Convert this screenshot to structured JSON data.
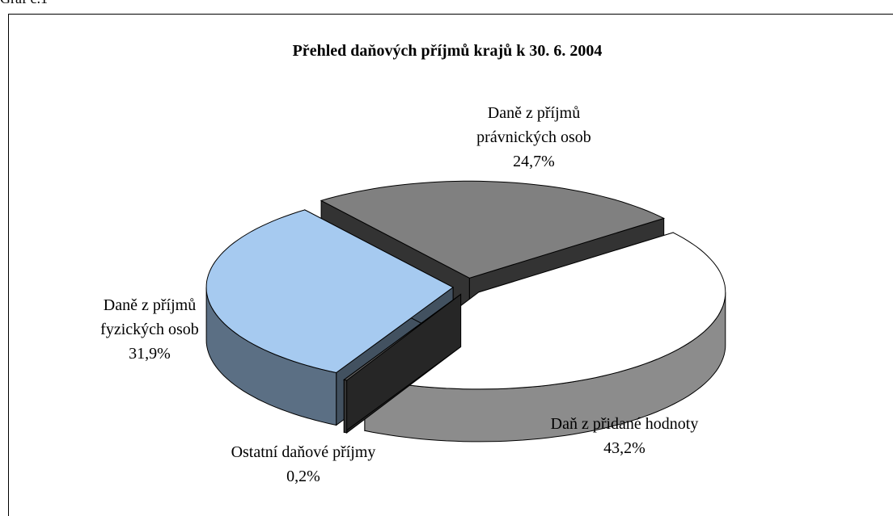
{
  "chart_data": {
    "type": "pie",
    "caption": "Graf č.1",
    "title": "Přehled daňových příjmů krajů k 30. 6. 2004",
    "categories": [
      "Daň z přidané hodnoty",
      "Ostatní daňové příjmy",
      "Daně z příjmů fyzických osob",
      "Daně z příjmů právnických osob"
    ],
    "values": [
      43.2,
      0.2,
      31.9,
      24.7
    ],
    "value_labels": [
      "43,2%",
      "0,2%",
      "31,9%",
      "24,7%"
    ],
    "colors": [
      "#ffffff",
      "#606060",
      "#a6caf0",
      "#808080"
    ]
  }
}
